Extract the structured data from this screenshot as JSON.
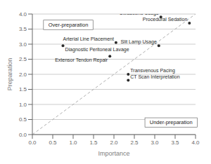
{
  "chart_data": {
    "type": "scatter",
    "xlabel": "Importance",
    "ylabel": "Preparation",
    "labels": [
      "Ultrasound Usage",
      "Procedural Sedation",
      "Arterial Line Placement",
      "Slit Lamp Usage",
      "Diagnostic Peritoneal Lavage",
      "Extensor Tendon Repair",
      "Transvenous Pacing",
      "CT Scan Interpretation"
    ],
    "x": [
      3.15,
      3.85,
      2.05,
      3.1,
      0.75,
      1.9,
      2.35,
      2.35
    ],
    "values": [
      3.9,
      3.7,
      3.05,
      2.95,
      2.95,
      2.6,
      2.0,
      1.8
    ],
    "color": "#2a2a2a",
    "xlim": [
      0,
      4
    ],
    "ylim": [
      0,
      4
    ],
    "xticks": [
      {
        "value": 0,
        "label": "0.0"
      },
      0.5,
      {
        "value": 1,
        "label": "1.0"
      },
      1.5,
      {
        "value": 2,
        "label": "2.0"
      },
      2.5,
      {
        "value": 3,
        "label": "3.0"
      },
      3.5,
      {
        "value": 4,
        "label": "4.0"
      }
    ],
    "yticks": [
      {
        "value": 0,
        "label": "0.0"
      },
      0.5,
      {
        "value": 1,
        "label": "1.0"
      },
      1.5,
      {
        "value": 2,
        "label": "2.0"
      },
      2.5,
      {
        "value": 3,
        "label": "3.0"
      },
      3.5,
      {
        "value": 4,
        "label": "4.0"
      }
    ],
    "grid": true,
    "annotations": [
      "Over-preparation",
      "Under-preparation"
    ]
  }
}
